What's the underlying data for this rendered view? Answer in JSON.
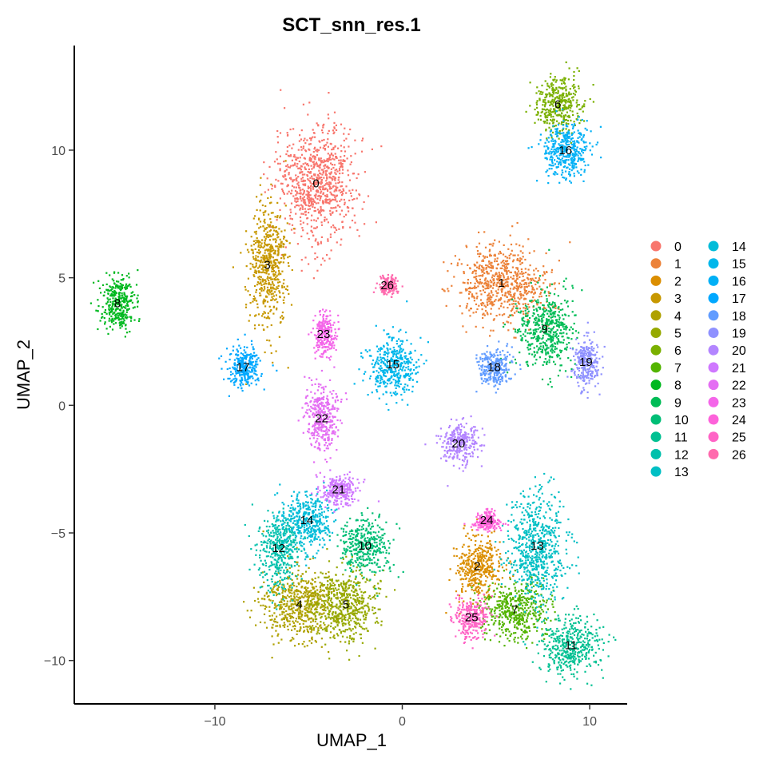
{
  "chart_data": {
    "type": "scatter",
    "title": "SCT_snn_res.1",
    "xlabel": "UMAP_1",
    "ylabel": "UMAP_2",
    "xlim": [
      -17.5,
      12
    ],
    "ylim": [
      -11.7,
      14.1
    ],
    "xticks": [
      {
        "value": -10,
        "label": "−10"
      },
      {
        "value": 0,
        "label": "0"
      },
      {
        "value": 10,
        "label": "10"
      }
    ],
    "yticks": [
      {
        "value": -10,
        "label": "−10"
      },
      {
        "value": -5,
        "label": "−5"
      },
      {
        "value": 0,
        "label": "0"
      },
      {
        "value": 5,
        "label": "5"
      },
      {
        "value": 10,
        "label": "10"
      }
    ],
    "grid": false,
    "legend": "right",
    "legend_columns": 2,
    "clusters": [
      {
        "label": "0",
        "color": "#F8766D",
        "center": [
          -4.6,
          8.7
        ],
        "spread": [
          2.1,
          2.2
        ]
      },
      {
        "label": "1",
        "color": "#EC8239",
        "center": [
          5.3,
          4.8
        ],
        "spread": [
          2.4,
          1.5
        ]
      },
      {
        "label": "2",
        "color": "#DB8E00",
        "center": [
          4.0,
          -6.3
        ],
        "spread": [
          1.2,
          1.3
        ]
      },
      {
        "label": "3",
        "color": "#C79800",
        "center": [
          -7.2,
          5.5
        ],
        "spread": [
          1.1,
          2.4
        ]
      },
      {
        "label": "4",
        "color": "#AFA100",
        "center": [
          -5.5,
          -7.8
        ],
        "spread": [
          2.1,
          1.4
        ]
      },
      {
        "label": "5",
        "color": "#96A900",
        "center": [
          -3.0,
          -7.8
        ],
        "spread": [
          1.8,
          1.4
        ]
      },
      {
        "label": "6",
        "color": "#7AB000",
        "center": [
          8.3,
          11.8
        ],
        "spread": [
          1.3,
          1.1
        ]
      },
      {
        "label": "7",
        "color": "#53B400",
        "center": [
          6.0,
          -8.0
        ],
        "spread": [
          1.9,
          1.1
        ]
      },
      {
        "label": "8",
        "color": "#00B81F",
        "center": [
          -15.2,
          4.0
        ],
        "spread": [
          1.0,
          1.1
        ]
      },
      {
        "label": "9",
        "color": "#00BC56",
        "center": [
          7.6,
          3.0
        ],
        "spread": [
          1.5,
          1.5
        ]
      },
      {
        "label": "10",
        "color": "#00BE76",
        "center": [
          -2.0,
          -5.5
        ],
        "spread": [
          1.3,
          1.0
        ]
      },
      {
        "label": "11",
        "color": "#00C092",
        "center": [
          9.0,
          -9.4
        ],
        "spread": [
          1.6,
          1.1
        ]
      },
      {
        "label": "12",
        "color": "#00C0AC",
        "center": [
          -6.6,
          -5.6
        ],
        "spread": [
          1.1,
          1.5
        ]
      },
      {
        "label": "13",
        "color": "#00BFC4",
        "center": [
          7.2,
          -5.5
        ],
        "spread": [
          1.5,
          2.2
        ]
      },
      {
        "label": "14",
        "color": "#00BCD9",
        "center": [
          -5.1,
          -4.5
        ],
        "spread": [
          1.3,
          1.1
        ]
      },
      {
        "label": "15",
        "color": "#00B7EB",
        "center": [
          -0.5,
          1.6
        ],
        "spread": [
          1.3,
          1.2
        ]
      },
      {
        "label": "16",
        "color": "#00B0F6",
        "center": [
          8.7,
          10.0
        ],
        "spread": [
          1.3,
          1.1
        ]
      },
      {
        "label": "17",
        "color": "#00A8FF",
        "center": [
          -8.5,
          1.5
        ],
        "spread": [
          0.9,
          0.8
        ]
      },
      {
        "label": "18",
        "color": "#619CFF",
        "center": [
          4.9,
          1.5
        ],
        "spread": [
          0.9,
          0.7
        ]
      },
      {
        "label": "19",
        "color": "#8F91FF",
        "center": [
          9.8,
          1.7
        ],
        "spread": [
          0.7,
          1.0
        ]
      },
      {
        "label": "20",
        "color": "#B385FF",
        "center": [
          3.0,
          -1.5
        ],
        "spread": [
          1.0,
          0.8
        ]
      },
      {
        "label": "21",
        "color": "#CF78FF",
        "center": [
          -3.4,
          -3.3
        ],
        "spread": [
          1.0,
          0.6
        ]
      },
      {
        "label": "22",
        "color": "#E46EF3",
        "center": [
          -4.3,
          -0.5
        ],
        "spread": [
          0.9,
          1.4
        ]
      },
      {
        "label": "23",
        "color": "#F466E9",
        "center": [
          -4.2,
          2.8
        ],
        "spread": [
          0.6,
          0.8
        ]
      },
      {
        "label": "24",
        "color": "#FD62DA",
        "center": [
          4.5,
          -4.5
        ],
        "spread": [
          0.7,
          0.4
        ]
      },
      {
        "label": "25",
        "color": "#FF64C6",
        "center": [
          3.7,
          -8.3
        ],
        "spread": [
          0.9,
          0.8
        ]
      },
      {
        "label": "26",
        "color": "#FF6AAE",
        "center": [
          -0.8,
          4.7
        ],
        "spread": [
          0.5,
          0.3
        ]
      }
    ]
  }
}
